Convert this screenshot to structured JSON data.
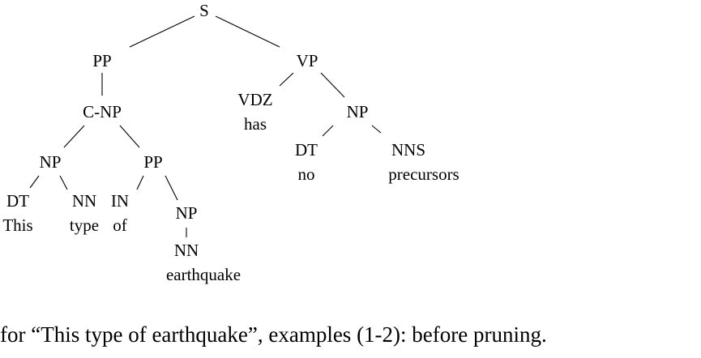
{
  "tree": {
    "labels": {
      "s": "S",
      "pp_root": "PP",
      "vp": "VP",
      "c_np": "C-NP",
      "vdz": "VDZ",
      "has": "has",
      "np_obj": "NP",
      "np_left": "NP",
      "pp_inner": "PP",
      "dt_obj": "DT",
      "no": "no",
      "nns": "NNS",
      "precursors": "precursors",
      "dt_this": "DT",
      "this": "This",
      "nn_type": "NN",
      "type": "type",
      "in": "IN",
      "of": "of",
      "np_inner": "NP",
      "nn_eq": "NN",
      "earthquake": "earthquake"
    }
  },
  "caption": {
    "text": "for “This type of earthquake”, examples (1-2): before pruning."
  }
}
